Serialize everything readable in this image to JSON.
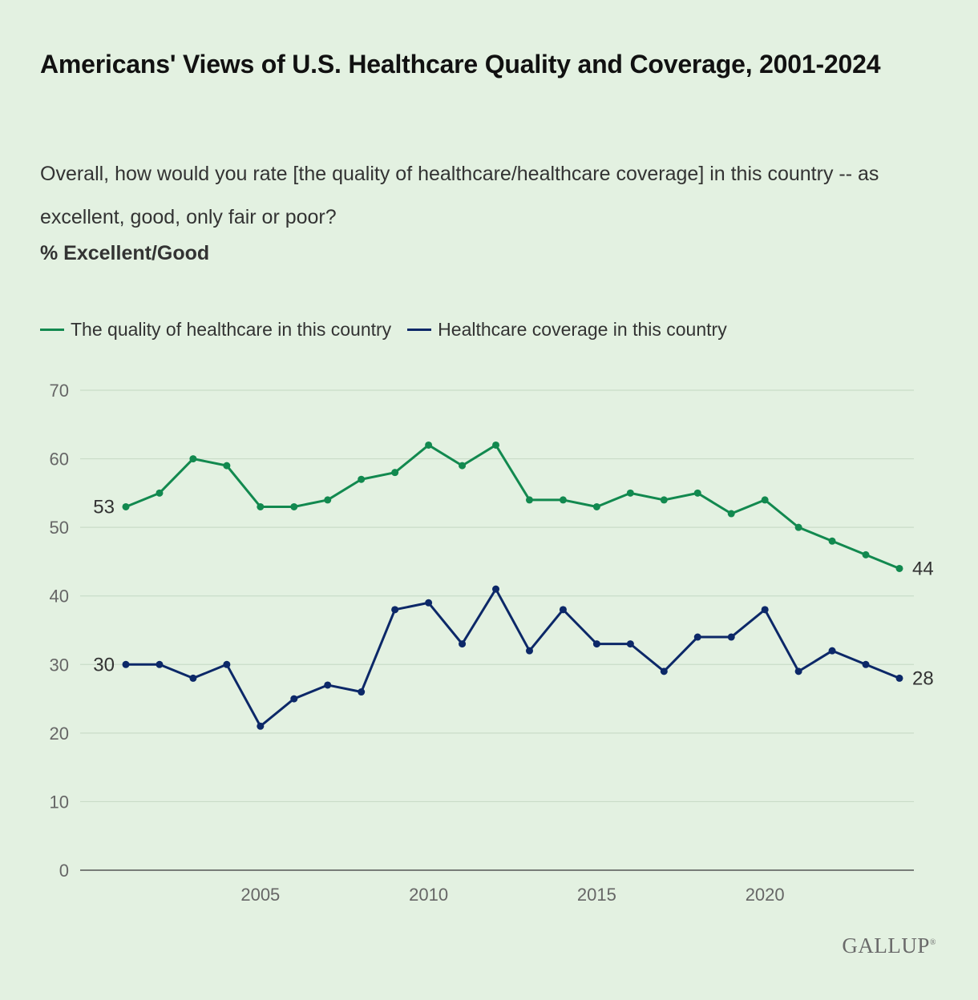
{
  "title": "Americans' Views of U.S. Healthcare Quality and Coverage, 2001-2024",
  "subtitle": "Overall, how would you rate [the quality of healthcare/healthcare coverage] in this country -- as excellent, good, only fair or poor?",
  "measure_label": "% Excellent/Good",
  "logo": "GALLUP",
  "colors": {
    "quality": "#12894f",
    "coverage": "#0c2868",
    "grid": "#c9dcc8",
    "axis": "#555555"
  },
  "chart_data": {
    "type": "line",
    "x": [
      2001,
      2002,
      2003,
      2004,
      2005,
      2006,
      2007,
      2008,
      2009,
      2010,
      2011,
      2012,
      2013,
      2014,
      2015,
      2016,
      2017,
      2018,
      2019,
      2020,
      2021,
      2022,
      2023,
      2024
    ],
    "series": [
      {
        "name": "The quality of healthcare in this country",
        "values": [
          53,
          55,
          60,
          59,
          53,
          53,
          54,
          57,
          58,
          62,
          59,
          62,
          54,
          54,
          53,
          55,
          54,
          55,
          52,
          54,
          50,
          48,
          46,
          44
        ]
      },
      {
        "name": "Healthcare coverage in this country",
        "values": [
          30,
          30,
          28,
          30,
          21,
          25,
          27,
          26,
          38,
          39,
          33,
          41,
          32,
          38,
          33,
          33,
          29,
          34,
          34,
          38,
          29,
          32,
          30,
          28
        ]
      }
    ],
    "ylim": [
      0,
      70
    ],
    "yticks": [
      0,
      10,
      20,
      30,
      40,
      50,
      60,
      70
    ],
    "xticks": [
      2005,
      2010,
      2015,
      2020
    ],
    "start_labels": [
      "53",
      "30"
    ],
    "end_labels": [
      "44",
      "28"
    ],
    "grid": true,
    "legend_position": "top-left"
  }
}
